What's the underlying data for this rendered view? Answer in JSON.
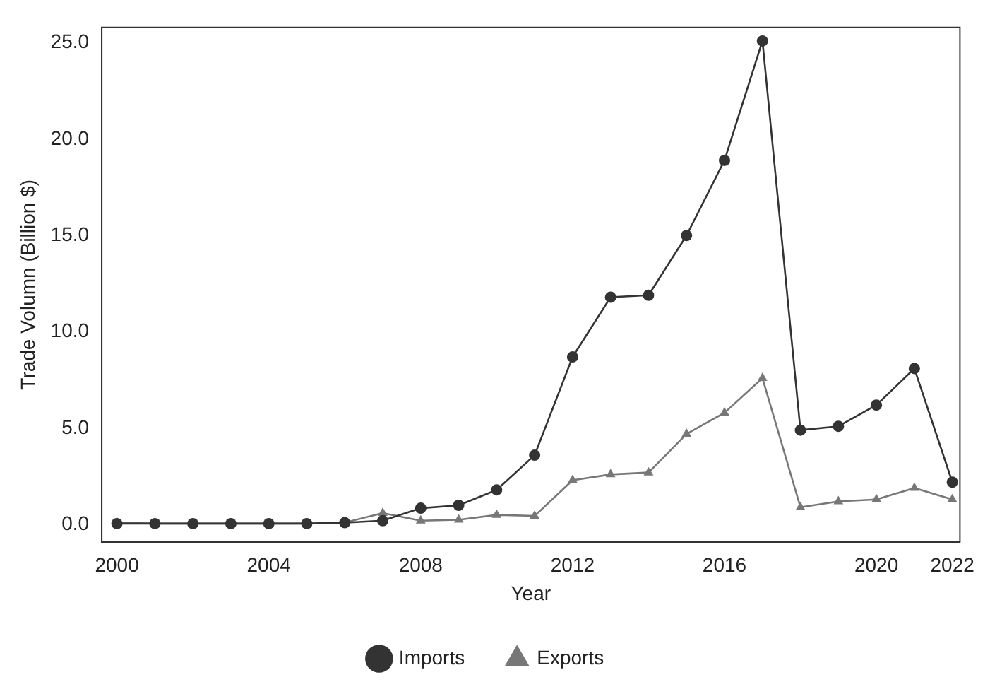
{
  "chart_data": {
    "type": "line",
    "xlabel": "Year",
    "ylabel": "Trade Volumn (Billion $)",
    "x": [
      2000,
      2001,
      2002,
      2003,
      2004,
      2005,
      2006,
      2007,
      2008,
      2009,
      2010,
      2011,
      2012,
      2013,
      2014,
      2015,
      2016,
      2017,
      2018,
      2019,
      2020,
      2021,
      2022
    ],
    "series": [
      {
        "name": "Imports",
        "color": "#333333",
        "marker": "circle",
        "values": [
          0.05,
          0.05,
          0.05,
          0.05,
          0.05,
          0.05,
          0.1,
          0.2,
          0.85,
          1.0,
          1.8,
          3.6,
          8.7,
          11.8,
          11.9,
          15.0,
          18.9,
          25.1,
          4.9,
          5.1,
          6.2,
          8.1,
          2.2
        ]
      },
      {
        "name": "Exports",
        "color": "#777777",
        "marker": "triangle",
        "values": [
          0.1,
          0.05,
          0.05,
          0.05,
          0.05,
          0.05,
          0.1,
          0.6,
          0.2,
          0.25,
          0.5,
          0.45,
          2.3,
          2.6,
          2.7,
          4.7,
          5.8,
          7.6,
          0.9,
          1.2,
          1.3,
          1.9,
          1.3
        ]
      }
    ],
    "xlim": [
      1999.6,
      2022.2
    ],
    "xticks": [
      2000,
      2004,
      2008,
      2012,
      2016,
      2020,
      2022
    ],
    "ylim": [
      -0.9,
      25.8
    ],
    "yticks": [
      {
        "value": 0,
        "label": "0.0"
      },
      {
        "value": 5,
        "label": "5.0"
      },
      {
        "value": 10,
        "label": "10.0"
      },
      {
        "value": 15,
        "label": "15.0"
      },
      {
        "value": 20,
        "label": "20.0"
      },
      {
        "value": 25,
        "label": "25.0"
      }
    ],
    "grid": false,
    "legend": "bottom",
    "line_style": "solid"
  }
}
